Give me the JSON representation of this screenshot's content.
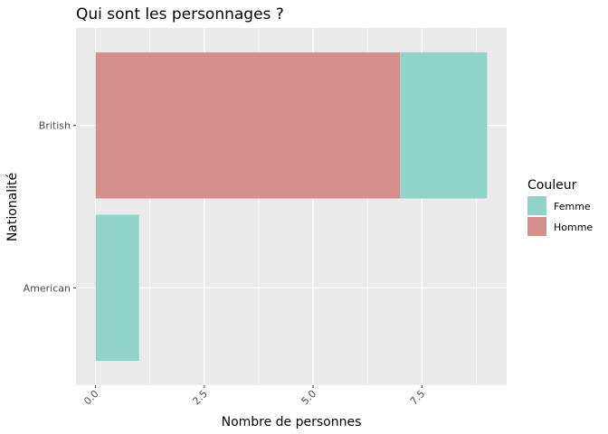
{
  "chart_data": {
    "type": "bar",
    "orientation": "horizontal",
    "stacked": true,
    "title": "Qui sont les personnages ?",
    "xlabel": "Nombre de personnes",
    "ylabel": "Nationalité",
    "categories": [
      "American",
      "British"
    ],
    "xlim": [
      -0.45,
      9.45
    ],
    "x_ticks": [
      0,
      2.5,
      5,
      7.5
    ],
    "x_tick_labels": [
      "0.0",
      "2.5",
      "5.0",
      "7.5"
    ],
    "series": [
      {
        "name": "Homme",
        "values": [
          0,
          7
        ],
        "color": "#d48e8c"
      },
      {
        "name": "Femme",
        "values": [
          1,
          2
        ],
        "color": "#90d3c8"
      }
    ],
    "legend": {
      "title": "Couleur",
      "position": "right",
      "items": [
        {
          "label": "Femme",
          "color": "#90d3c8"
        },
        {
          "label": "Homme",
          "color": "#d48e8c"
        }
      ]
    },
    "grid": true,
    "panel_background": "#ebebeb",
    "grid_color": "#ffffff"
  }
}
